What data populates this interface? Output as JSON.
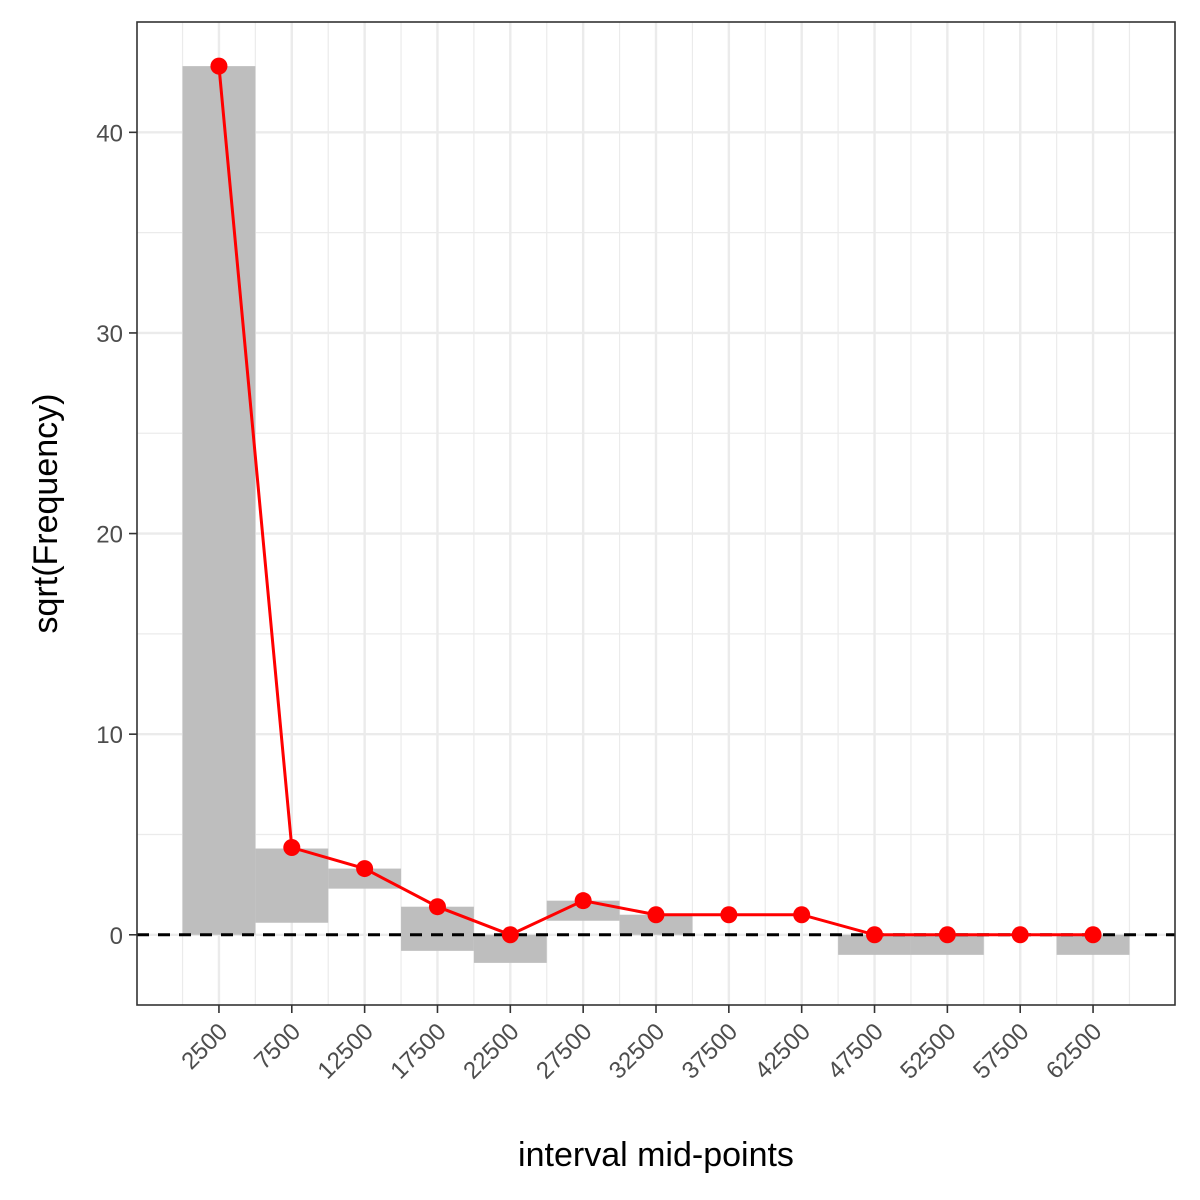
{
  "chart_data": {
    "type": "bar",
    "subtype": "hanging rootogram",
    "title": "",
    "xlabel": "interval mid-points",
    "ylabel": "sqrt(Frequency)",
    "x": [
      2500,
      7500,
      12500,
      17500,
      22500,
      27500,
      32500,
      37500,
      42500,
      47500,
      52500,
      57500,
      62500
    ],
    "x_tick_labels": [
      "2500",
      "7500",
      "12500",
      "17500",
      "22500",
      "27500",
      "32500",
      "37500",
      "42500",
      "47500",
      "52500",
      "57500",
      "62500"
    ],
    "bin_width": 5000,
    "series": [
      {
        "kind": "hanging-bars",
        "bar_top": [
          43.3,
          4.3,
          3.3,
          1.4,
          0.0,
          1.7,
          1.0,
          0.0,
          0.0,
          0.0,
          0.0,
          0.0,
          0.0
        ],
        "bar_bottom": [
          0.0,
          0.6,
          2.3,
          -0.8,
          -1.4,
          0.7,
          0.0,
          0.0,
          0.0,
          -1.0,
          -1.0,
          0.0,
          -1.0
        ],
        "color": "#bebebe"
      },
      {
        "kind": "line-points",
        "values": [
          43.3,
          4.35,
          3.3,
          1.4,
          0.0,
          1.7,
          1.0,
          1.0,
          1.0,
          0.0,
          0.0,
          0.0,
          0.0
        ],
        "color": "#ff0000"
      }
    ],
    "reference_line": {
      "y": 0,
      "style": "dashed",
      "color": "#000000"
    },
    "y_ticks": [
      0,
      10,
      20,
      30,
      40
    ],
    "y_tick_labels": [
      "0",
      "10",
      "20",
      "30",
      "40"
    ],
    "xlim": [
      -3125,
      68125
    ],
    "ylim": [
      -3.5,
      45.5
    ],
    "grid": true,
    "panel_border": "#333333",
    "grid_color": "#ebebeb"
  }
}
